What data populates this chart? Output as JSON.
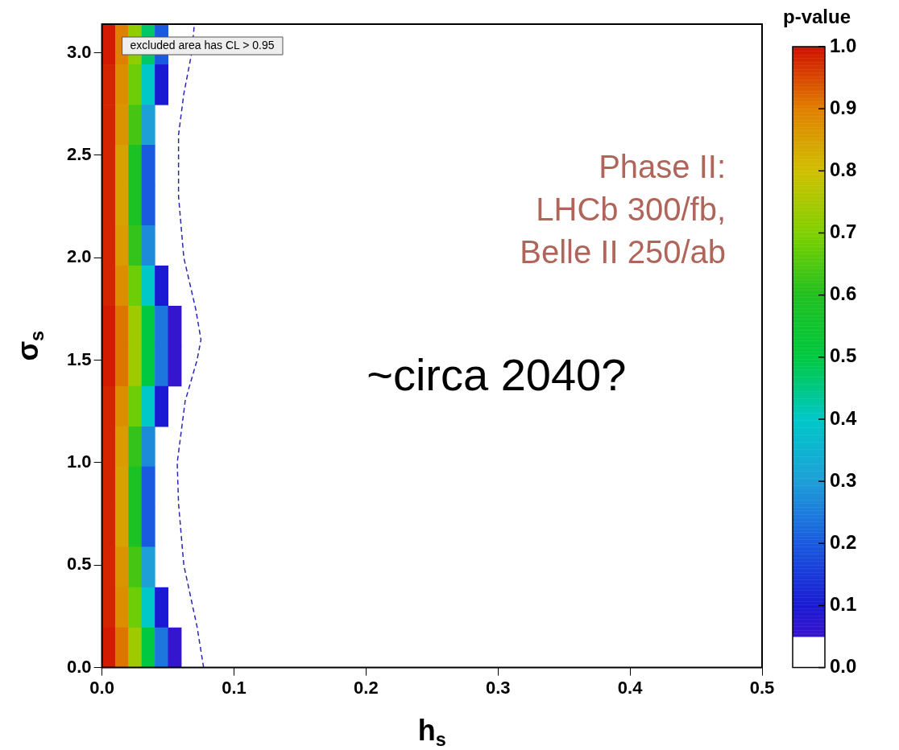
{
  "chart_data": {
    "type": "heatmap",
    "xlabel": "h$_{s}$",
    "ylabel": "σ$_{s}$",
    "clabel": "p-value",
    "xlim": [
      0,
      0.5
    ],
    "xticks": [
      {
        "value": 0,
        "label": "0.0"
      },
      {
        "value": 0.1,
        "label": "0.1"
      },
      {
        "value": 0.2,
        "label": "0.2"
      },
      {
        "value": 0.3,
        "label": "0.3"
      },
      {
        "value": 0.4,
        "label": "0.4"
      },
      {
        "value": 0.5,
        "label": "0.5"
      }
    ],
    "ylim": [
      0,
      3.14
    ],
    "yticks": [
      {
        "value": 0,
        "label": "0.0"
      },
      {
        "value": 0.5,
        "label": "0.5"
      },
      {
        "value": 1,
        "label": "1.0"
      },
      {
        "value": 1.5,
        "label": "1.5"
      },
      {
        "value": 2,
        "label": "2.0"
      },
      {
        "value": 2.5,
        "label": "2.5"
      },
      {
        "value": 3,
        "label": "3.0"
      }
    ],
    "clim": [
      0,
      1
    ],
    "cticks": [
      {
        "value": 0,
        "label": "0.0"
      },
      {
        "value": 0.1,
        "label": "0.1"
      },
      {
        "value": 0.2,
        "label": "0.2"
      },
      {
        "value": 0.3,
        "label": "0.3"
      },
      {
        "value": 0.4,
        "label": "0.4"
      },
      {
        "value": 0.5,
        "label": "0.5"
      },
      {
        "value": 0.6,
        "label": "0.6"
      },
      {
        "value": 0.7,
        "label": "0.7"
      },
      {
        "value": 0.8,
        "label": "0.8"
      },
      {
        "value": 0.9,
        "label": "0.9"
      },
      {
        "value": 1,
        "label": "1.0"
      }
    ],
    "x": [
      0.005,
      0.015,
      0.025,
      0.035,
      0.045,
      0.055,
      0.065,
      0.075,
      0.085,
      0.095,
      0.105,
      0.115,
      0.125,
      0.135,
      0.145,
      0.155,
      0.165,
      0.175,
      0.185,
      0.195,
      0.205,
      0.215,
      0.225,
      0.235,
      0.245,
      0.255,
      0.265,
      0.275,
      0.285,
      0.295,
      0.305,
      0.315,
      0.325,
      0.335,
      0.345,
      0.355,
      0.365,
      0.375,
      0.385,
      0.395,
      0.405,
      0.415,
      0.425,
      0.435,
      0.445,
      0.455,
      0.465,
      0.475,
      0.485,
      0.495
    ],
    "y": [
      3.042,
      2.845,
      2.649,
      2.453,
      2.257,
      2.06,
      1.864,
      1.668,
      1.472,
      1.275,
      1.079,
      0.883,
      0.687,
      0.491,
      0.294,
      0.098
    ],
    "cells": [
      [
        0.99,
        0.9,
        0.72,
        0.47,
        0.2,
        null,
        null,
        null,
        null,
        null,
        null,
        null,
        null,
        null,
        null,
        null,
        null,
        null,
        null,
        null,
        null,
        null,
        null,
        null,
        null,
        null,
        null,
        null,
        null,
        null,
        null,
        null,
        null,
        null,
        null,
        null,
        null,
        null,
        null,
        null,
        null,
        null,
        null,
        null,
        null,
        null,
        null,
        null,
        null,
        null
      ],
      [
        0.98,
        0.88,
        0.68,
        0.4,
        0.1,
        null,
        null,
        null,
        null,
        null,
        null,
        null,
        null,
        null,
        null,
        null,
        null,
        null,
        null,
        null,
        null,
        null,
        null,
        null,
        null,
        null,
        null,
        null,
        null,
        null,
        null,
        null,
        null,
        null,
        null,
        null,
        null,
        null,
        null,
        null,
        null,
        null,
        null,
        null,
        null,
        null,
        null,
        null,
        null,
        null
      ],
      [
        0.98,
        0.87,
        0.64,
        0.3,
        null,
        null,
        null,
        null,
        null,
        null,
        null,
        null,
        null,
        null,
        null,
        null,
        null,
        null,
        null,
        null,
        null,
        null,
        null,
        null,
        null,
        null,
        null,
        null,
        null,
        null,
        null,
        null,
        null,
        null,
        null,
        null,
        null,
        null,
        null,
        null,
        null,
        null,
        null,
        null,
        null,
        null,
        null,
        null,
        null,
        null
      ],
      [
        0.98,
        0.85,
        0.58,
        0.2,
        null,
        null,
        null,
        null,
        null,
        null,
        null,
        null,
        null,
        null,
        null,
        null,
        null,
        null,
        null,
        null,
        null,
        null,
        null,
        null,
        null,
        null,
        null,
        null,
        null,
        null,
        null,
        null,
        null,
        null,
        null,
        null,
        null,
        null,
        null,
        null,
        null,
        null,
        null,
        null,
        null,
        null,
        null,
        null,
        null,
        null
      ],
      [
        0.98,
        0.85,
        0.58,
        0.2,
        null,
        null,
        null,
        null,
        null,
        null,
        null,
        null,
        null,
        null,
        null,
        null,
        null,
        null,
        null,
        null,
        null,
        null,
        null,
        null,
        null,
        null,
        null,
        null,
        null,
        null,
        null,
        null,
        null,
        null,
        null,
        null,
        null,
        null,
        null,
        null,
        null,
        null,
        null,
        null,
        null,
        null,
        null,
        null,
        null,
        null
      ],
      [
        0.98,
        0.86,
        0.62,
        0.27,
        null,
        null,
        null,
        null,
        null,
        null,
        null,
        null,
        null,
        null,
        null,
        null,
        null,
        null,
        null,
        null,
        null,
        null,
        null,
        null,
        null,
        null,
        null,
        null,
        null,
        null,
        null,
        null,
        null,
        null,
        null,
        null,
        null,
        null,
        null,
        null,
        null,
        null,
        null,
        null,
        null,
        null,
        null,
        null,
        null,
        null
      ],
      [
        0.98,
        0.88,
        0.68,
        0.4,
        0.1,
        null,
        null,
        null,
        null,
        null,
        null,
        null,
        null,
        null,
        null,
        null,
        null,
        null,
        null,
        null,
        null,
        null,
        null,
        null,
        null,
        null,
        null,
        null,
        null,
        null,
        null,
        null,
        null,
        null,
        null,
        null,
        null,
        null,
        null,
        null,
        null,
        null,
        null,
        null,
        null,
        null,
        null,
        null,
        null,
        null
      ],
      [
        0.99,
        0.91,
        0.74,
        0.5,
        0.24,
        0.06,
        null,
        null,
        null,
        null,
        null,
        null,
        null,
        null,
        null,
        null,
        null,
        null,
        null,
        null,
        null,
        null,
        null,
        null,
        null,
        null,
        null,
        null,
        null,
        null,
        null,
        null,
        null,
        null,
        null,
        null,
        null,
        null,
        null,
        null,
        null,
        null,
        null,
        null,
        null,
        null,
        null,
        null,
        null,
        null
      ],
      [
        0.99,
        0.91,
        0.74,
        0.5,
        0.24,
        0.06,
        null,
        null,
        null,
        null,
        null,
        null,
        null,
        null,
        null,
        null,
        null,
        null,
        null,
        null,
        null,
        null,
        null,
        null,
        null,
        null,
        null,
        null,
        null,
        null,
        null,
        null,
        null,
        null,
        null,
        null,
        null,
        null,
        null,
        null,
        null,
        null,
        null,
        null,
        null,
        null,
        null,
        null,
        null,
        null
      ],
      [
        0.98,
        0.88,
        0.68,
        0.4,
        0.1,
        null,
        null,
        null,
        null,
        null,
        null,
        null,
        null,
        null,
        null,
        null,
        null,
        null,
        null,
        null,
        null,
        null,
        null,
        null,
        null,
        null,
        null,
        null,
        null,
        null,
        null,
        null,
        null,
        null,
        null,
        null,
        null,
        null,
        null,
        null,
        null,
        null,
        null,
        null,
        null,
        null,
        null,
        null,
        null,
        null
      ],
      [
        0.98,
        0.86,
        0.62,
        0.27,
        null,
        null,
        null,
        null,
        null,
        null,
        null,
        null,
        null,
        null,
        null,
        null,
        null,
        null,
        null,
        null,
        null,
        null,
        null,
        null,
        null,
        null,
        null,
        null,
        null,
        null,
        null,
        null,
        null,
        null,
        null,
        null,
        null,
        null,
        null,
        null,
        null,
        null,
        null,
        null,
        null,
        null,
        null,
        null,
        null,
        null
      ],
      [
        0.98,
        0.85,
        0.58,
        0.2,
        null,
        null,
        null,
        null,
        null,
        null,
        null,
        null,
        null,
        null,
        null,
        null,
        null,
        null,
        null,
        null,
        null,
        null,
        null,
        null,
        null,
        null,
        null,
        null,
        null,
        null,
        null,
        null,
        null,
        null,
        null,
        null,
        null,
        null,
        null,
        null,
        null,
        null,
        null,
        null,
        null,
        null,
        null,
        null,
        null,
        null
      ],
      [
        0.98,
        0.85,
        0.58,
        0.2,
        null,
        null,
        null,
        null,
        null,
        null,
        null,
        null,
        null,
        null,
        null,
        null,
        null,
        null,
        null,
        null,
        null,
        null,
        null,
        null,
        null,
        null,
        null,
        null,
        null,
        null,
        null,
        null,
        null,
        null,
        null,
        null,
        null,
        null,
        null,
        null,
        null,
        null,
        null,
        null,
        null,
        null,
        null,
        null,
        null,
        null
      ],
      [
        0.98,
        0.87,
        0.64,
        0.3,
        null,
        null,
        null,
        null,
        null,
        null,
        null,
        null,
        null,
        null,
        null,
        null,
        null,
        null,
        null,
        null,
        null,
        null,
        null,
        null,
        null,
        null,
        null,
        null,
        null,
        null,
        null,
        null,
        null,
        null,
        null,
        null,
        null,
        null,
        null,
        null,
        null,
        null,
        null,
        null,
        null,
        null,
        null,
        null,
        null,
        null
      ],
      [
        0.98,
        0.88,
        0.68,
        0.4,
        0.1,
        null,
        null,
        null,
        null,
        null,
        null,
        null,
        null,
        null,
        null,
        null,
        null,
        null,
        null,
        null,
        null,
        null,
        null,
        null,
        null,
        null,
        null,
        null,
        null,
        null,
        null,
        null,
        null,
        null,
        null,
        null,
        null,
        null,
        null,
        null,
        null,
        null,
        null,
        null,
        null,
        null,
        null,
        null,
        null,
        null
      ],
      [
        0.99,
        0.91,
        0.74,
        0.5,
        0.24,
        0.06,
        null,
        null,
        null,
        null,
        null,
        null,
        null,
        null,
        null,
        null,
        null,
        null,
        null,
        null,
        null,
        null,
        null,
        null,
        null,
        null,
        null,
        null,
        null,
        null,
        null,
        null,
        null,
        null,
        null,
        null,
        null,
        null,
        null,
        null,
        null,
        null,
        null,
        null,
        null,
        null,
        null,
        null,
        null,
        null
      ]
    ],
    "series": [
      {
        "type": "line",
        "color": "#2828b4",
        "x": [
          0.077,
          0.072,
          0.062,
          0.058,
          0.057,
          0.063,
          0.072,
          0.075,
          0.071,
          0.062,
          0.058,
          0.058,
          0.062,
          0.068,
          0.07
        ],
        "values": [
          0,
          0.2,
          0.5,
          0.8,
          1.0,
          1.3,
          1.5,
          1.6,
          1.75,
          2.0,
          2.3,
          2.6,
          2.8,
          3.0,
          3.14
        ]
      }
    ],
    "line_style": "dashed",
    "marker": "none",
    "grid": false,
    "legend": false,
    "annotations": [
      "excluded area has CL > 0.95",
      "Phase II:",
      "LHCb 300/fb,",
      "Belle II 250/ab",
      "~circa 2040?"
    ]
  }
}
